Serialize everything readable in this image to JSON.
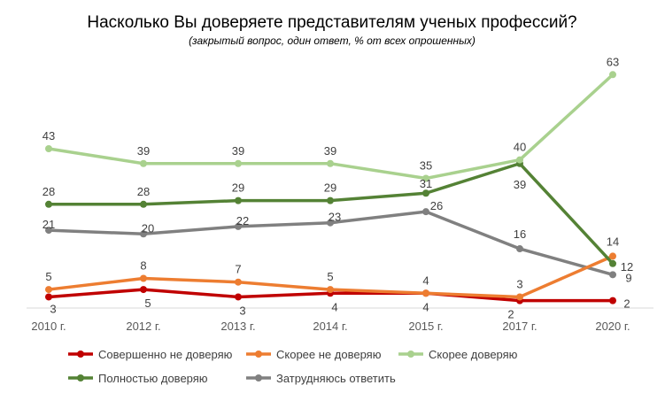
{
  "chart_data": {
    "type": "line",
    "title": "Насколько Вы доверяете представителям ученых профессий?",
    "subtitle": "(закрытый вопрос, один ответ, % от всех опрошенных)",
    "xlabel": "",
    "ylabel": "",
    "categories": [
      "2010 г.",
      "2012 г.",
      "2013 г.",
      "2014 г.",
      "2015 г.",
      "2017 г.",
      "2020 г."
    ],
    "ylim": [
      0,
      70
    ],
    "grid": false,
    "legend_position": "bottom",
    "series": [
      {
        "name": "Совершенно не доверяю",
        "color": "#c00000",
        "values": [
          3,
          5,
          3,
          4,
          4,
          2,
          2
        ]
      },
      {
        "name": "Скорее не доверяю",
        "color": "#ed7d31",
        "values": [
          5,
          8,
          7,
          5,
          4,
          3,
          14
        ]
      },
      {
        "name": "Скорее доверяю",
        "color": "#a9d18e",
        "values": [
          43,
          39,
          39,
          39,
          35,
          40,
          63
        ]
      },
      {
        "name": "Полностью доверяю",
        "color": "#548235",
        "values": [
          28,
          28,
          29,
          29,
          31,
          39,
          12
        ]
      },
      {
        "name": "Затрудняюсь ответить",
        "color": "#808080",
        "values": [
          21,
          20,
          22,
          23,
          26,
          16,
          9
        ]
      }
    ]
  }
}
